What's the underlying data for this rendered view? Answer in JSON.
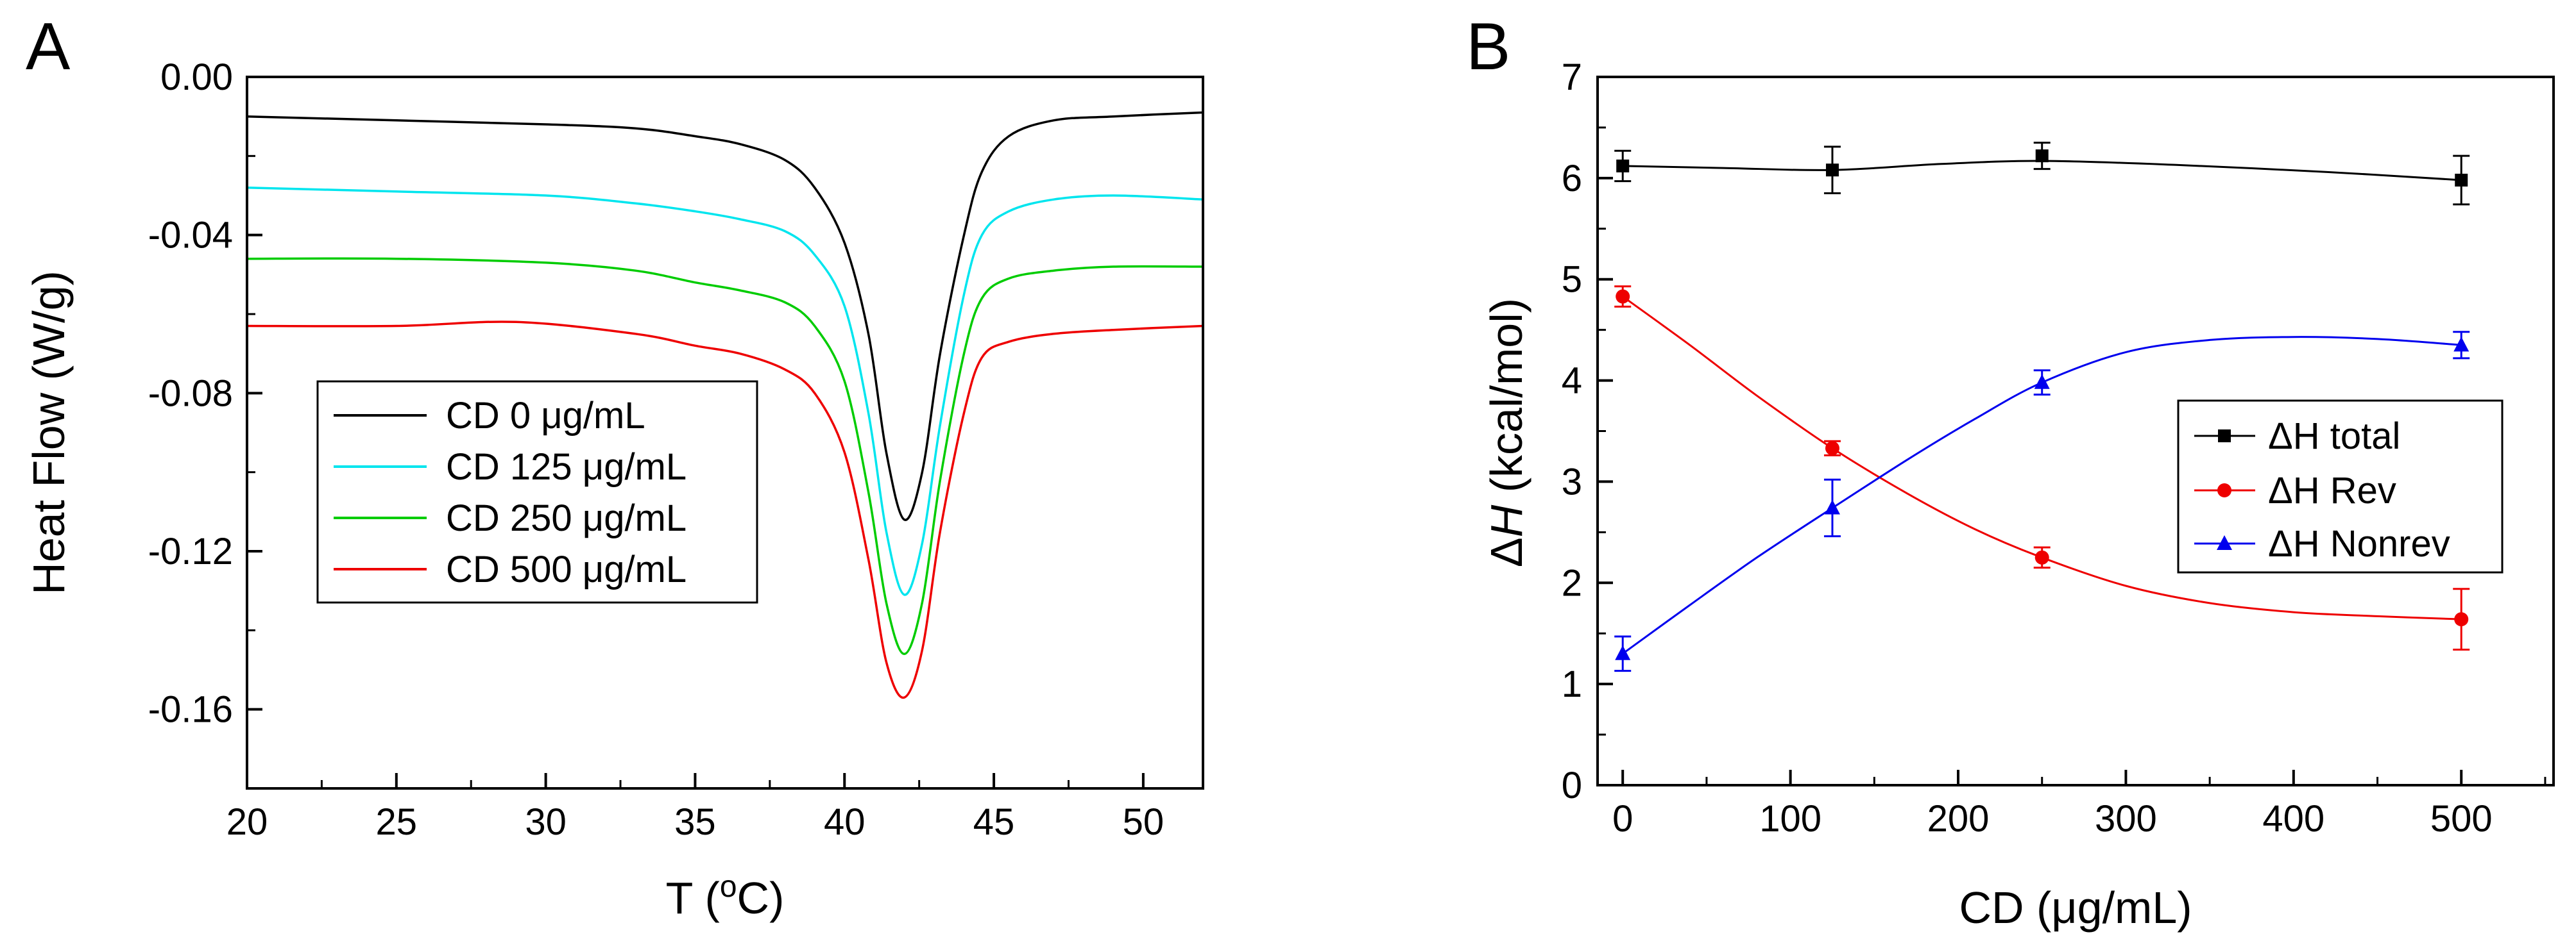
{
  "chart_data": [
    {
      "type": "line",
      "panel_label": "A",
      "xlabel_main": "T (",
      "xlabel_sup": "o",
      "xlabel_end": "C)",
      "ylabel": "Heat Flow (W/g)",
      "xlim": [
        20,
        52
      ],
      "ylim": [
        -0.18,
        0.0
      ],
      "xticks": [
        20,
        25,
        30,
        35,
        40,
        45,
        50
      ],
      "yticks": [
        0.0,
        -0.04,
        -0.08,
        -0.12,
        -0.16
      ],
      "ytick_labels": [
        "0.00",
        "-0.04",
        "-0.08",
        "-0.12",
        "-0.16"
      ],
      "legend_position": "center-left",
      "series": [
        {
          "name": "CD 0 μg/mL",
          "color": "#000000",
          "x": [
            20,
            25,
            30,
            33,
            35,
            36.5,
            38,
            39,
            40,
            40.8,
            41.4,
            42,
            42.6,
            43.2,
            44,
            44.6,
            45.5,
            47,
            49,
            52
          ],
          "y": [
            -0.01,
            -0.011,
            -0.012,
            -0.013,
            -0.015,
            -0.017,
            -0.021,
            -0.028,
            -0.042,
            -0.065,
            -0.095,
            -0.112,
            -0.1,
            -0.07,
            -0.04,
            -0.024,
            -0.015,
            -0.011,
            -0.01,
            -0.009
          ]
        },
        {
          "name": "CD 125 μg/mL",
          "color": "#00e5ee",
          "x": [
            20,
            25,
            30,
            33,
            35,
            36.5,
            38,
            39,
            40,
            40.8,
            41.4,
            42,
            42.6,
            43.2,
            44,
            44.6,
            45.5,
            47,
            49,
            52
          ],
          "y": [
            -0.028,
            -0.029,
            -0.03,
            -0.032,
            -0.034,
            -0.036,
            -0.039,
            -0.045,
            -0.058,
            -0.085,
            -0.115,
            -0.131,
            -0.118,
            -0.088,
            -0.055,
            -0.04,
            -0.034,
            -0.031,
            -0.03,
            -0.031
          ]
        },
        {
          "name": "CD 250 μg/mL",
          "color": "#00cc00",
          "x": [
            20,
            25,
            30,
            33,
            35,
            36.5,
            38,
            39,
            40,
            40.8,
            41.4,
            42,
            42.6,
            43.2,
            44,
            44.6,
            45.5,
            47,
            49,
            52
          ],
          "y": [
            -0.046,
            -0.046,
            -0.047,
            -0.049,
            -0.052,
            -0.054,
            -0.057,
            -0.063,
            -0.077,
            -0.105,
            -0.133,
            -0.146,
            -0.133,
            -0.102,
            -0.07,
            -0.056,
            -0.051,
            -0.049,
            -0.048,
            -0.048
          ]
        },
        {
          "name": "CD 500 μg/mL",
          "color": "#ee0000",
          "x": [
            20,
            25,
            29,
            33,
            35,
            36.5,
            38,
            39,
            40,
            40.8,
            41.4,
            42,
            42.6,
            43.2,
            44,
            44.6,
            45.5,
            47,
            49,
            52
          ],
          "y": [
            -0.063,
            -0.063,
            -0.062,
            -0.065,
            -0.068,
            -0.07,
            -0.074,
            -0.08,
            -0.095,
            -0.122,
            -0.148,
            -0.157,
            -0.145,
            -0.115,
            -0.085,
            -0.071,
            -0.067,
            -0.065,
            -0.064,
            -0.063
          ]
        }
      ]
    },
    {
      "type": "line",
      "panel_label": "B",
      "xlabel": "CD (μg/mL)",
      "ylabel_delta": "Δ",
      "ylabel_italic": "H",
      "ylabel_rest": " (kcal/mol)",
      "xlim": [
        -15,
        555
      ],
      "ylim": [
        0,
        7
      ],
      "xticks": [
        0,
        100,
        200,
        300,
        400,
        500
      ],
      "yticks": [
        0,
        1,
        2,
        3,
        4,
        5,
        6,
        7
      ],
      "legend_position": "center-right",
      "x": [
        0,
        125,
        250,
        500
      ],
      "series": [
        {
          "name": "ΔH total",
          "color": "#000000",
          "marker": "square",
          "values": [
            6.12,
            6.08,
            6.22,
            5.98
          ],
          "errors": [
            0.15,
            0.23,
            0.13,
            0.24
          ],
          "curve_x": [
            0,
            60,
            125,
            190,
            250,
            330,
            420,
            500
          ],
          "curve_y": [
            6.12,
            6.1,
            6.08,
            6.14,
            6.17,
            6.13,
            6.06,
            5.98
          ]
        },
        {
          "name": "ΔH Rev",
          "color": "#ee0000",
          "marker": "circle",
          "values": [
            4.83,
            3.33,
            2.25,
            1.64
          ],
          "errors": [
            0.1,
            0.07,
            0.1,
            0.3
          ],
          "curve_x": [
            0,
            40,
            80,
            125,
            170,
            210,
            250,
            300,
            350,
            400,
            450,
            500
          ],
          "curve_y": [
            4.83,
            4.35,
            3.85,
            3.33,
            2.88,
            2.53,
            2.25,
            1.97,
            1.8,
            1.71,
            1.67,
            1.64
          ]
        },
        {
          "name": "ΔH Nonrev",
          "color": "#0000ee",
          "marker": "triangle",
          "values": [
            1.3,
            2.74,
            3.98,
            4.35
          ],
          "errors": [
            0.17,
            0.28,
            0.12,
            0.13
          ],
          "curve_x": [
            0,
            40,
            80,
            125,
            170,
            210,
            250,
            300,
            350,
            400,
            450,
            500
          ],
          "curve_y": [
            1.3,
            1.78,
            2.25,
            2.74,
            3.22,
            3.62,
            3.98,
            4.28,
            4.4,
            4.43,
            4.41,
            4.35
          ]
        }
      ]
    }
  ]
}
